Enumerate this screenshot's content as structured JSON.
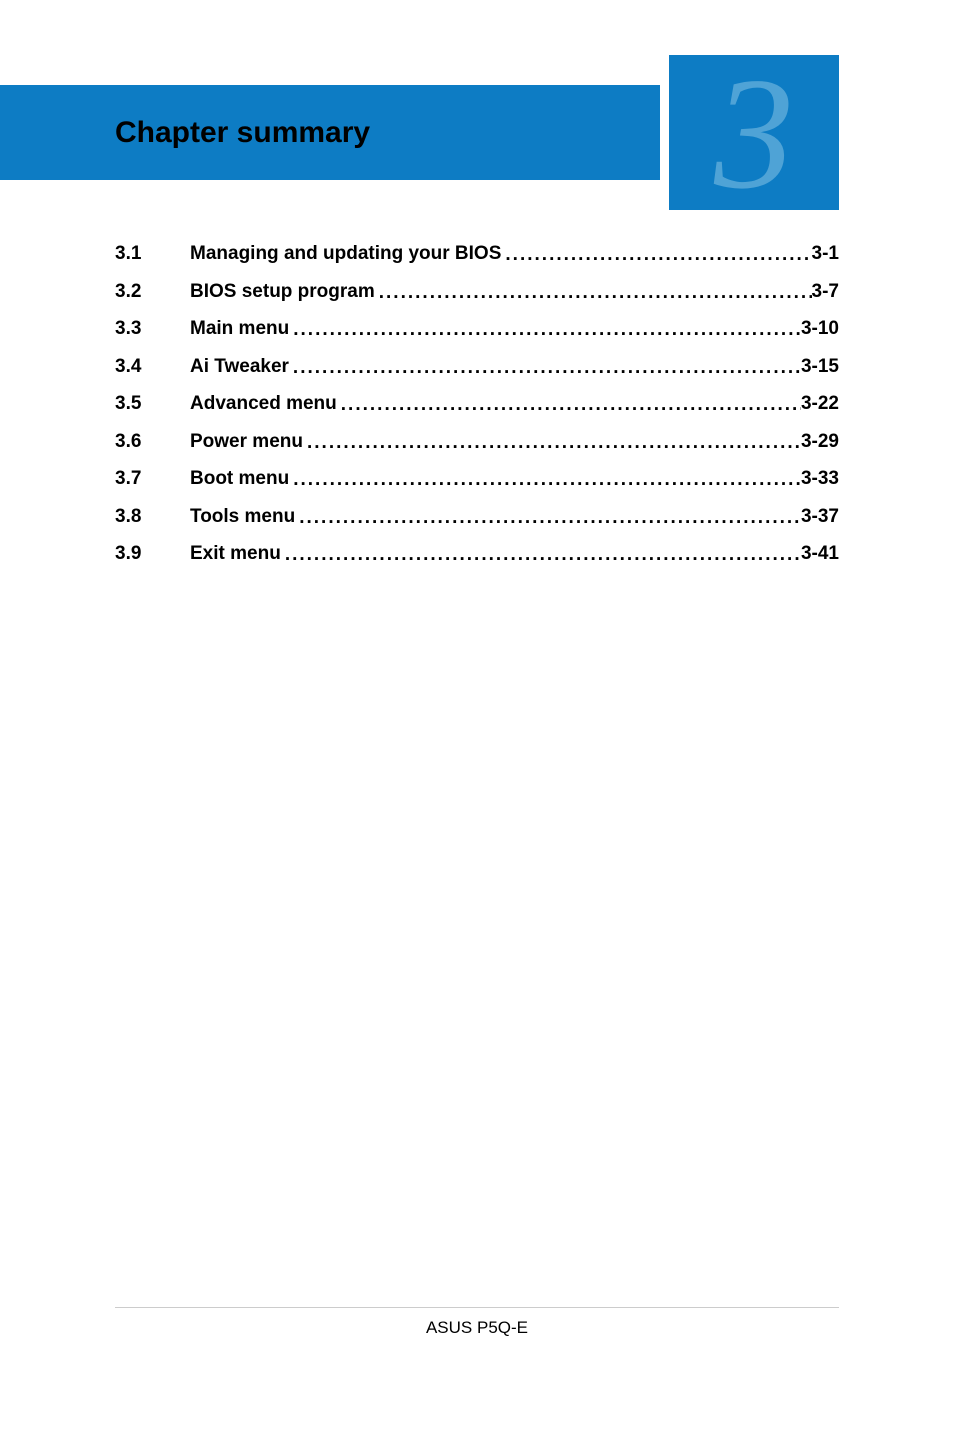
{
  "banner": {
    "title": "Chapter summary",
    "chapter_number": "3",
    "banner_color": "#0d7cc4",
    "number_color": "#4fa3d6"
  },
  "toc": {
    "entries": [
      {
        "section": "3.1",
        "title": "Managing and updating your BIOS",
        "page": "3-1"
      },
      {
        "section": "3.2",
        "title": "BIOS setup program",
        "page": "3-7"
      },
      {
        "section": "3.3",
        "title": "Main menu",
        "page": "3-10"
      },
      {
        "section": "3.4",
        "title": "Ai Tweaker",
        "page": "3-15"
      },
      {
        "section": "3.5",
        "title": "Advanced menu",
        "page": "3-22"
      },
      {
        "section": "3.6",
        "title": "Power menu",
        "page": "3-29"
      },
      {
        "section": "3.7",
        "title": "Boot menu",
        "page": "3-33"
      },
      {
        "section": "3.8",
        "title": "Tools menu",
        "page": "3-37"
      },
      {
        "section": "3.9",
        "title": "Exit menu",
        "page": "3-41"
      }
    ]
  },
  "footer": {
    "text": "ASUS P5Q-E"
  }
}
